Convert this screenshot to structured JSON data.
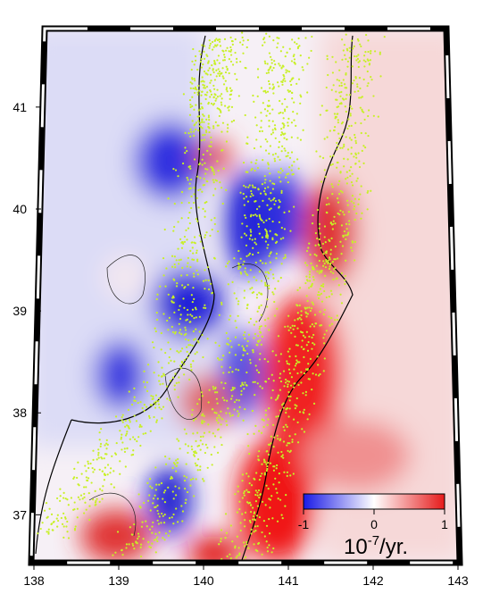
{
  "map": {
    "xlim": [
      138,
      143
    ],
    "ylim": [
      36.53,
      41.77
    ],
    "xticks": [
      138,
      139,
      140,
      141,
      142,
      143
    ],
    "yticks": [
      37,
      38,
      39,
      40,
      41
    ]
  },
  "colorbar": {
    "lim": [
      -1,
      1
    ],
    "ticks": [
      -1,
      0,
      1
    ],
    "unit_base": "10",
    "unit_exp": "-7",
    "unit_suffix": "/yr."
  }
}
